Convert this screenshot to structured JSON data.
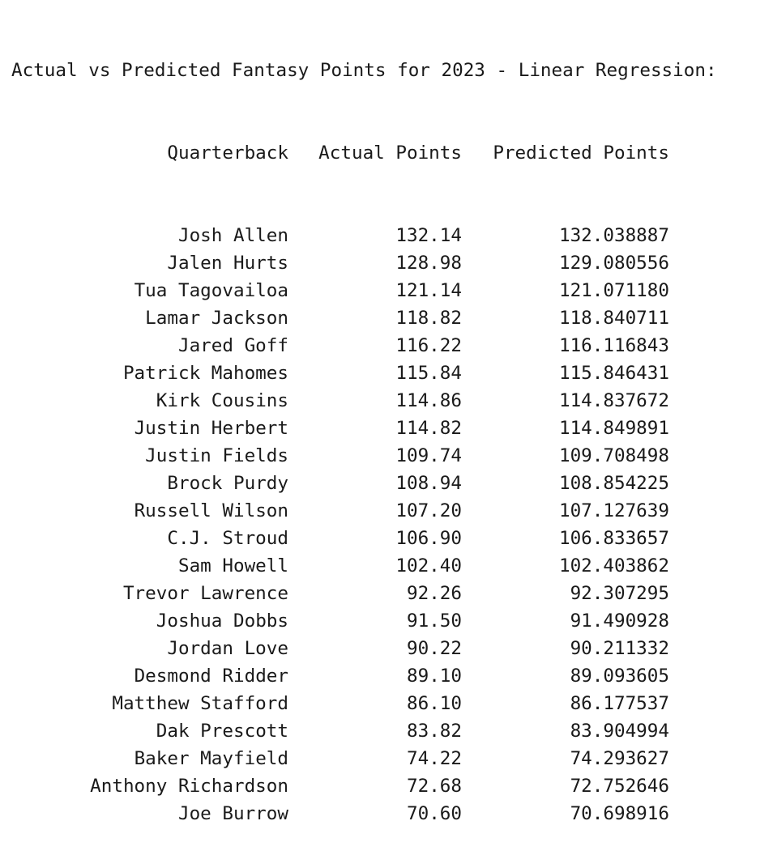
{
  "title": "Actual vs Predicted Fantasy Points for 2023 - Linear Regression:",
  "columns": [
    "Quarterback",
    "Actual Points",
    "Predicted Points"
  ],
  "rows": [
    [
      "Josh Allen",
      "132.14",
      "132.038887"
    ],
    [
      "Jalen Hurts",
      "128.98",
      "129.080556"
    ],
    [
      "Tua Tagovailoa",
      "121.14",
      "121.071180"
    ],
    [
      "Lamar Jackson",
      "118.82",
      "118.840711"
    ],
    [
      "Jared Goff",
      "116.22",
      "116.116843"
    ],
    [
      "Patrick Mahomes",
      "115.84",
      "115.846431"
    ],
    [
      "Kirk Cousins",
      "114.86",
      "114.837672"
    ],
    [
      "Justin Herbert",
      "114.82",
      "114.849891"
    ],
    [
      "Justin Fields",
      "109.74",
      "109.708498"
    ],
    [
      "Brock Purdy",
      "108.94",
      "108.854225"
    ],
    [
      "Russell Wilson",
      "107.20",
      "107.127639"
    ],
    [
      "C.J. Stroud",
      "106.90",
      "106.833657"
    ],
    [
      "Sam Howell",
      "102.40",
      "102.403862"
    ],
    [
      "Trevor Lawrence",
      "92.26",
      "92.307295"
    ],
    [
      "Joshua Dobbs",
      "91.50",
      "91.490928"
    ],
    [
      "Jordan Love",
      "90.22",
      "90.211332"
    ],
    [
      "Desmond Ridder",
      "89.10",
      "89.093605"
    ],
    [
      "Matthew Stafford",
      "86.10",
      "86.177537"
    ],
    [
      "Dak Prescott",
      "83.82",
      "83.904994"
    ],
    [
      "Baker Mayfield",
      "74.22",
      "74.293627"
    ],
    [
      "Anthony Richardson",
      "72.68",
      "72.752646"
    ],
    [
      "Joe Burrow",
      "70.60",
      "70.698916"
    ]
  ]
}
